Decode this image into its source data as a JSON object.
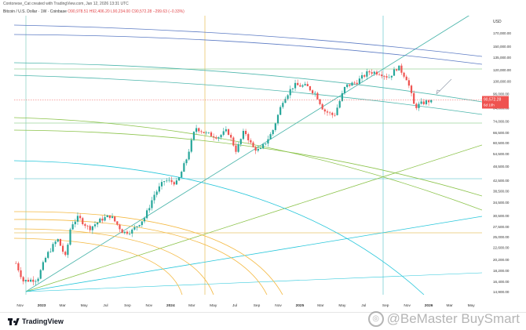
{
  "header": {
    "text": "Contonese_Cat created with TradingView.com, Jan 12, 2026 13:31 UTC"
  },
  "legend": {
    "symbol": "Bitcoin / U.S. Dollar · 1W · Coinbase",
    "open": "O90,978.51",
    "high": "H92,406.20",
    "low": "L90,234.00",
    "close": "C90,572.28",
    "change": "−299.63 (−0.33%)"
  },
  "footer": {
    "brand": "TradingView"
  },
  "watermark": {
    "text": "@BeMaster BuySmart"
  },
  "colors": {
    "up": "#26a69a",
    "down": "#ef5350",
    "price_label": "#ef5350"
  },
  "chart_data": {
    "type": "candlestick",
    "currency_label": "USD",
    "price_scale": "log",
    "y_ticks": [
      "170,000.00",
      "150,000.00",
      "135,000.00",
      "120,000.00",
      "108,000.00",
      "96,000.00",
      "84,000.00",
      "74,000.00",
      "66,500.00",
      "60,500.00",
      "54,500.00",
      "48,500.00",
      "42,500.00",
      "38,500.00",
      "34,500.00",
      "30,500.00",
      "27,500.00",
      "25,000.00",
      "22,600.00",
      "20,200.00",
      "18,200.00",
      "16,400.00",
      "14,900.00"
    ],
    "y_values": [
      170000,
      150000,
      135000,
      120000,
      108000,
      96000,
      84000,
      74000,
      66500,
      60500,
      54500,
      48500,
      42500,
      38500,
      34500,
      30500,
      27500,
      25000,
      22600,
      20200,
      18200,
      16400,
      14900
    ],
    "current_price": "90,572.28",
    "current_price_value": 90572,
    "current_countdown": "6d 10h",
    "x_ticks": [
      "Nov",
      "2023",
      "Mar",
      "May",
      "Jul",
      "Sep",
      "Nov",
      "2024",
      "Mar",
      "May",
      "Jul",
      "Sep",
      "Nov",
      "2025",
      "Mar",
      "May",
      "Jul",
      "Sep",
      "Nov",
      "2026",
      "Mar",
      "May"
    ],
    "x_tick_dates": [
      "2022-11-01",
      "2023-01-01",
      "2023-03-01",
      "2023-05-01",
      "2023-07-01",
      "2023-09-01",
      "2023-11-01",
      "2024-01-01",
      "2024-03-01",
      "2024-05-01",
      "2024-07-01",
      "2024-09-01",
      "2024-11-01",
      "2025-01-01",
      "2025-03-01",
      "2025-05-01",
      "2025-07-01",
      "2025-09-01",
      "2025-11-01",
      "2026-01-01",
      "2026-03-01",
      "2026-05-01"
    ],
    "x_range": [
      "2022-10-15",
      "2026-06-01"
    ],
    "y_range": [
      14500,
      200000
    ],
    "anchors": [
      {
        "d": "2022-10-20",
        "p": 19500
      },
      {
        "d": "2022-11-10",
        "p": 16500
      },
      {
        "d": "2022-12-20",
        "p": 16800
      },
      {
        "d": "2023-01-15",
        "p": 21000
      },
      {
        "d": "2023-02-15",
        "p": 24500
      },
      {
        "d": "2023-03-10",
        "p": 20500
      },
      {
        "d": "2023-03-25",
        "p": 28000
      },
      {
        "d": "2023-04-15",
        "p": 30000
      },
      {
        "d": "2023-05-15",
        "p": 27000
      },
      {
        "d": "2023-06-20",
        "p": 29500
      },
      {
        "d": "2023-07-15",
        "p": 30500
      },
      {
        "d": "2023-08-20",
        "p": 26000
      },
      {
        "d": "2023-09-15",
        "p": 26500
      },
      {
        "d": "2023-10-20",
        "p": 30000
      },
      {
        "d": "2023-11-15",
        "p": 37000
      },
      {
        "d": "2023-12-15",
        "p": 42500
      },
      {
        "d": "2024-01-20",
        "p": 41500
      },
      {
        "d": "2024-02-15",
        "p": 52000
      },
      {
        "d": "2024-03-12",
        "p": 70000
      },
      {
        "d": "2024-04-10",
        "p": 66000
      },
      {
        "d": "2024-05-15",
        "p": 64000
      },
      {
        "d": "2024-06-10",
        "p": 68000
      },
      {
        "d": "2024-07-05",
        "p": 56000
      },
      {
        "d": "2024-07-28",
        "p": 68000
      },
      {
        "d": "2024-08-20",
        "p": 58000
      },
      {
        "d": "2024-09-10",
        "p": 56000
      },
      {
        "d": "2024-10-15",
        "p": 67000
      },
      {
        "d": "2024-11-15",
        "p": 91000
      },
      {
        "d": "2024-12-15",
        "p": 104000
      },
      {
        "d": "2025-01-20",
        "p": 103000
      },
      {
        "d": "2025-02-15",
        "p": 96000
      },
      {
        "d": "2025-03-10",
        "p": 82000
      },
      {
        "d": "2025-04-08",
        "p": 78000
      },
      {
        "d": "2025-05-10",
        "p": 103000
      },
      {
        "d": "2025-06-10",
        "p": 107000
      },
      {
        "d": "2025-07-15",
        "p": 118000
      },
      {
        "d": "2025-08-15",
        "p": 117000
      },
      {
        "d": "2025-09-10",
        "p": 112000
      },
      {
        "d": "2025-10-06",
        "p": 124000
      },
      {
        "d": "2025-11-01",
        "p": 110000
      },
      {
        "d": "2025-11-22",
        "p": 84500
      },
      {
        "d": "2025-12-15",
        "p": 88000
      },
      {
        "d": "2026-01-11",
        "p": 90572
      }
    ]
  }
}
